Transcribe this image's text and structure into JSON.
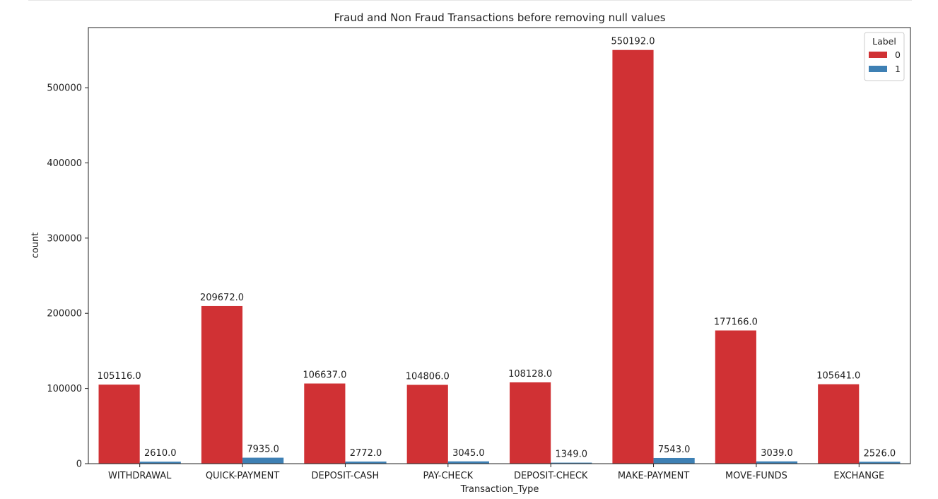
{
  "chart_data": {
    "type": "bar",
    "title": "Fraud and Non Fraud Transactions before removing null values",
    "xlabel": "Transaction_Type",
    "ylabel": "count",
    "categories": [
      "WITHDRAWAL",
      "QUICK-PAYMENT",
      "DEPOSIT-CASH",
      "PAY-CHECK",
      "DEPOSIT-CHECK",
      "MAKE-PAYMENT",
      "MOVE-FUNDS",
      "EXCHANGE"
    ],
    "series": [
      {
        "name": "0",
        "color": "#d03134",
        "values": [
          105116,
          209672,
          106637,
          104806,
          108128,
          550192,
          177166,
          105641
        ],
        "labels": [
          "105116.0",
          "209672.0",
          "106637.0",
          "104806.0",
          "108128.0",
          "550192.0",
          "177166.0",
          "105641.0"
        ]
      },
      {
        "name": "1",
        "color": "#3e80b4",
        "values": [
          2610,
          7935,
          2772,
          3045,
          1349,
          7543,
          3039,
          2526
        ],
        "labels": [
          "2610.0",
          "7935.0",
          "2772.0",
          "3045.0",
          "1349.0",
          "7543.0",
          "3039.0",
          "2526.0"
        ]
      }
    ],
    "ylim": [
      0,
      580000
    ],
    "yticks": [
      0,
      100000,
      200000,
      300000,
      400000,
      500000
    ],
    "grid": false,
    "legend": {
      "title": "Label",
      "position": "top-right"
    }
  }
}
